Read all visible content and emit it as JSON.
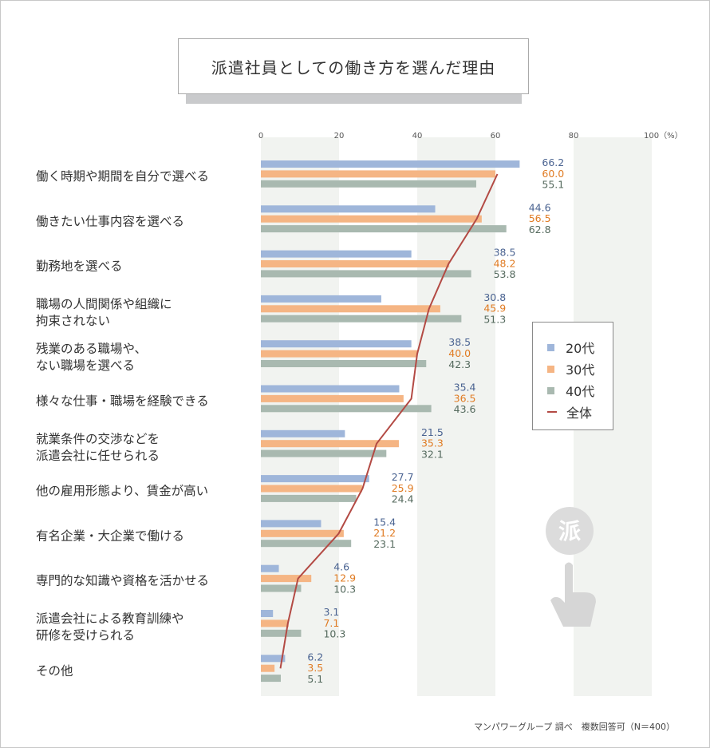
{
  "title": "派遣社員としての働き方を選んだ理由",
  "note": "マンパワーグループ 調べ　複数回答可（N＝400）",
  "legend": {
    "s20": "20代",
    "s30": "30代",
    "s40": "40代",
    "total": "全体"
  },
  "colors": {
    "s20": "#9fb6da",
    "s30": "#f5b584",
    "s40": "#a9b9b0",
    "total": "#b34a44",
    "label20": "#4a6391",
    "label30": "#e07b23",
    "label40": "#556a5e",
    "band": "#f1f3f0"
  },
  "icon": {
    "badge": "派"
  },
  "chart_data": {
    "type": "bar",
    "orientation": "horizontal",
    "xlim": [
      0,
      100
    ],
    "x_ticks": [
      "0",
      "20",
      "40",
      "60",
      "80",
      "100（%）"
    ],
    "categories": [
      "働く時期や期間を自分で選べる",
      "働きたい仕事内容を選べる",
      "勤務地を選べる",
      "職場の人間関係や組織に\n拘束されない",
      "残業のある職場や、\nない職場を選べる",
      "様々な仕事・職場を経験できる",
      "就業条件の交渉などを\n派遣会社に任せられる",
      "他の雇用形態より、賃金が高い",
      "有名企業・大企業で働ける",
      "専門的な知識や資格を活かせる",
      "派遣会社による教育訓練や\n研修を受けられる",
      "その他"
    ],
    "series": [
      {
        "name": "20代",
        "values": [
          66.2,
          44.6,
          38.5,
          30.8,
          38.5,
          35.4,
          21.5,
          27.7,
          15.4,
          4.6,
          3.1,
          6.2
        ]
      },
      {
        "name": "30代",
        "values": [
          60.0,
          56.5,
          48.2,
          45.9,
          40.0,
          36.5,
          35.3,
          25.9,
          21.2,
          12.9,
          7.1,
          3.5
        ]
      },
      {
        "name": "40代",
        "values": [
          55.1,
          62.8,
          53.8,
          51.3,
          42.3,
          43.6,
          32.1,
          24.4,
          23.1,
          10.3,
          10.3,
          5.1
        ]
      }
    ],
    "value_labels": [
      [
        "66.2",
        "60.0",
        "55.1"
      ],
      [
        "44.6",
        "56.5",
        "62.8"
      ],
      [
        "38.5",
        "48.2",
        "53.8"
      ],
      [
        "30.8",
        "45.9",
        "51.3"
      ],
      [
        "38.5",
        "40.0",
        "42.3"
      ],
      [
        "35.4",
        "36.5",
        "43.6"
      ],
      [
        "21.5",
        "35.3",
        "32.1"
      ],
      [
        "27.7",
        "25.9",
        "24.4"
      ],
      [
        "15.4",
        "21.2",
        "23.1"
      ],
      [
        "4.6",
        "12.9",
        "10.3"
      ],
      [
        "3.1",
        "7.1",
        "10.3"
      ],
      [
        "6.2",
        "3.5",
        "5.1"
      ]
    ],
    "total_line": {
      "name": "全体",
      "values": [
        60.5,
        55.2,
        48.0,
        43.0,
        40.0,
        38.5,
        29.6,
        26.0,
        19.9,
        9.5,
        6.9,
        5.0
      ]
    },
    "grid": "alternating vertical bands",
    "legend_position": "right"
  }
}
